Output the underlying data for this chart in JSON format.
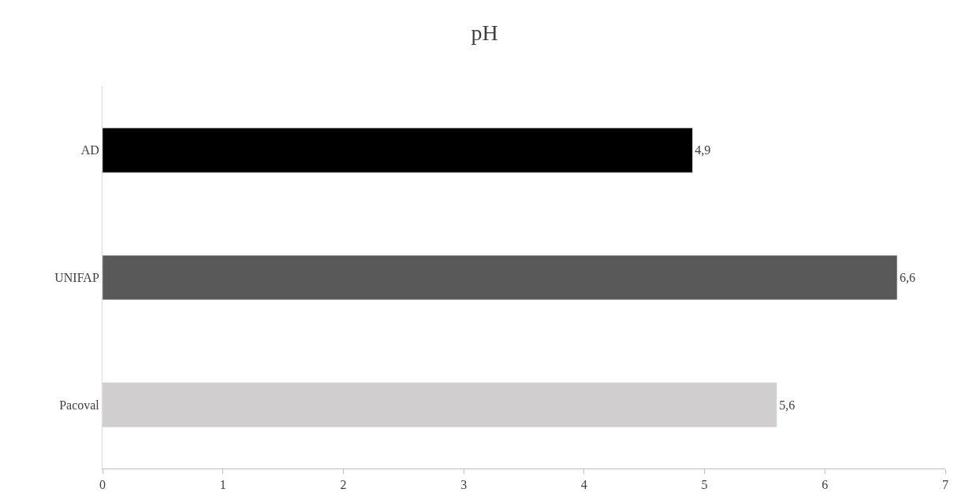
{
  "chart_data": {
    "type": "bar",
    "orientation": "horizontal",
    "title": "pH",
    "categories": [
      "AD",
      "UNIFAP",
      "Pacoval"
    ],
    "values": [
      4.9,
      6.6,
      5.6
    ],
    "colors": [
      "#000000",
      "#595959",
      "#d0cecf"
    ],
    "value_labels": [
      "4,9",
      "6,6",
      "5,6"
    ],
    "xlim": [
      0,
      7
    ],
    "xticks": [
      0,
      1,
      2,
      3,
      4,
      5,
      6,
      7
    ]
  }
}
